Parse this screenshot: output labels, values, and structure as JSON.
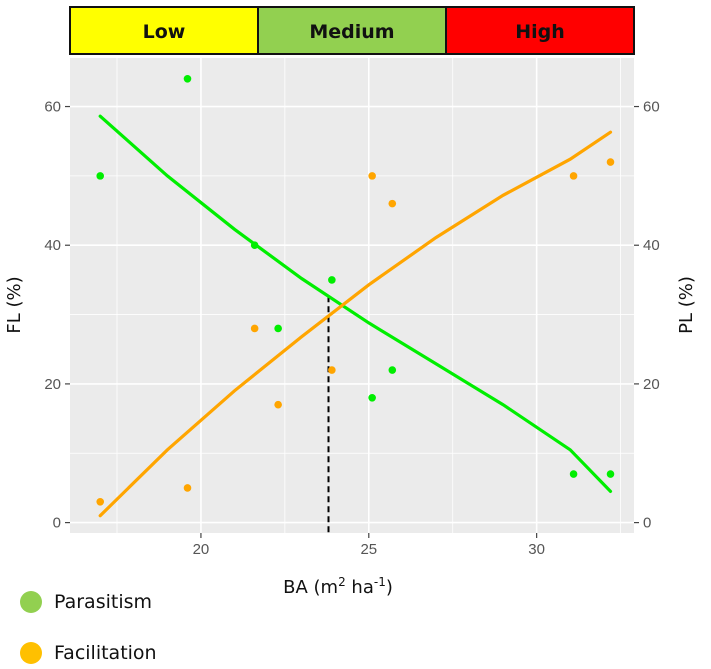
{
  "chart_data": {
    "type": "scatter",
    "bands": [
      {
        "label": "Low",
        "from": 16.1,
        "to": 21.7,
        "color": "#FFFF00"
      },
      {
        "label": "Medium",
        "from": 21.7,
        "to": 27.3,
        "color": "#92D050"
      },
      {
        "label": "High",
        "from": 27.3,
        "to": 32.9,
        "color": "#FF0000"
      }
    ],
    "xlabel": {
      "main": "BA (m",
      "sup1": "2",
      "mid": " ha",
      "sup2": "-1",
      "end": ")"
    },
    "ylabel_left": "FL (%)",
    "ylabel_right": "PL (%)",
    "xlim": [
      16.1,
      32.9
    ],
    "ylim": [
      -1.5,
      67
    ],
    "x_ticks": [
      20,
      25,
      30
    ],
    "y_ticks": [
      0,
      20,
      40,
      60
    ],
    "grid": true,
    "threshold_x": 23.8,
    "series": [
      {
        "name": "Parasitism",
        "color": "#00EE00",
        "points": [
          [
            17.0,
            50
          ],
          [
            19.6,
            64
          ],
          [
            21.6,
            40
          ],
          [
            22.3,
            28
          ],
          [
            23.9,
            35
          ],
          [
            25.1,
            18
          ],
          [
            25.7,
            22
          ],
          [
            31.1,
            7
          ],
          [
            32.2,
            7
          ]
        ],
        "fit": [
          [
            17.0,
            58.6
          ],
          [
            19.0,
            50.0
          ],
          [
            21.0,
            42.3
          ],
          [
            23.0,
            35.2
          ],
          [
            25.0,
            28.8
          ],
          [
            27.0,
            22.9
          ],
          [
            29.0,
            17.0
          ],
          [
            31.0,
            10.5
          ],
          [
            32.2,
            4.5
          ]
        ]
      },
      {
        "name": "Facilitation",
        "color": "#FFA500",
        "points": [
          [
            17.0,
            3
          ],
          [
            19.6,
            5
          ],
          [
            21.6,
            28
          ],
          [
            22.3,
            17
          ],
          [
            23.9,
            22
          ],
          [
            25.1,
            50
          ],
          [
            25.7,
            46
          ],
          [
            31.1,
            50
          ],
          [
            32.2,
            52
          ]
        ],
        "fit": [
          [
            17.0,
            1.0
          ],
          [
            19.0,
            10.5
          ],
          [
            21.0,
            19.0
          ],
          [
            23.0,
            26.8
          ],
          [
            25.0,
            34.3
          ],
          [
            27.0,
            41.1
          ],
          [
            29.0,
            47.2
          ],
          [
            31.0,
            52.4
          ],
          [
            32.2,
            56.3
          ]
        ]
      }
    ]
  },
  "legend": [
    {
      "label": "Parasitism",
      "color": "#92D050"
    },
    {
      "label": "Facilitation",
      "color": "#FFC000"
    }
  ]
}
